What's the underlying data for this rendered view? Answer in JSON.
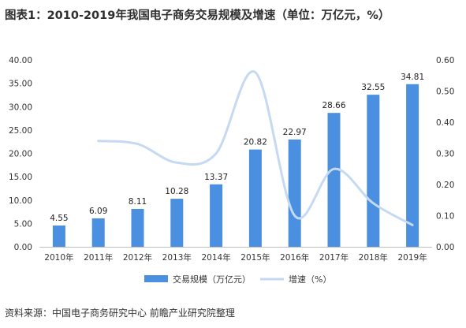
{
  "title": "图表1：2010-2019年我国电子商务交易规模及增速（单位：万亿元，%）",
  "source": "资料来源：中国电子商务研究中心 前瞻产业研究院整理",
  "colors": {
    "bar": "#4a8fe0",
    "line": "#c5daf2",
    "axis": "#bfbfbf"
  },
  "chart_data": {
    "type": "bar",
    "categories": [
      "2010年",
      "2011年",
      "2012年",
      "2013年",
      "2014年",
      "2015年",
      "2016年",
      "2017年",
      "2018年",
      "2019年"
    ],
    "series": [
      {
        "name": "交易规模（万亿元）",
        "type": "bar",
        "axis": "left",
        "values": [
          4.55,
          6.09,
          8.11,
          10.28,
          13.37,
          20.82,
          22.97,
          28.66,
          32.55,
          34.81
        ]
      },
      {
        "name": "增速（%）",
        "type": "line",
        "axis": "right",
        "smooth": true,
        "values": [
          null,
          0.34,
          0.33,
          0.27,
          0.3,
          0.56,
          0.1,
          0.25,
          0.14,
          0.07
        ]
      }
    ],
    "y_left": {
      "min": 0,
      "max": 40,
      "ticks": [
        "0.00",
        "5.00",
        "10.00",
        "15.00",
        "20.00",
        "25.00",
        "30.00",
        "35.00",
        "40.00"
      ]
    },
    "y_right": {
      "min": 0,
      "max": 0.6,
      "ticks": [
        "0.00",
        "0.10",
        "0.20",
        "0.30",
        "0.40",
        "0.50",
        "0.60"
      ]
    },
    "data_labels": [
      "4.55",
      "6.09",
      "8.11",
      "10.28",
      "13.37",
      "20.82",
      "22.97",
      "28.66",
      "32.55",
      "34.81"
    ],
    "legend_position": "bottom",
    "grid": false
  }
}
